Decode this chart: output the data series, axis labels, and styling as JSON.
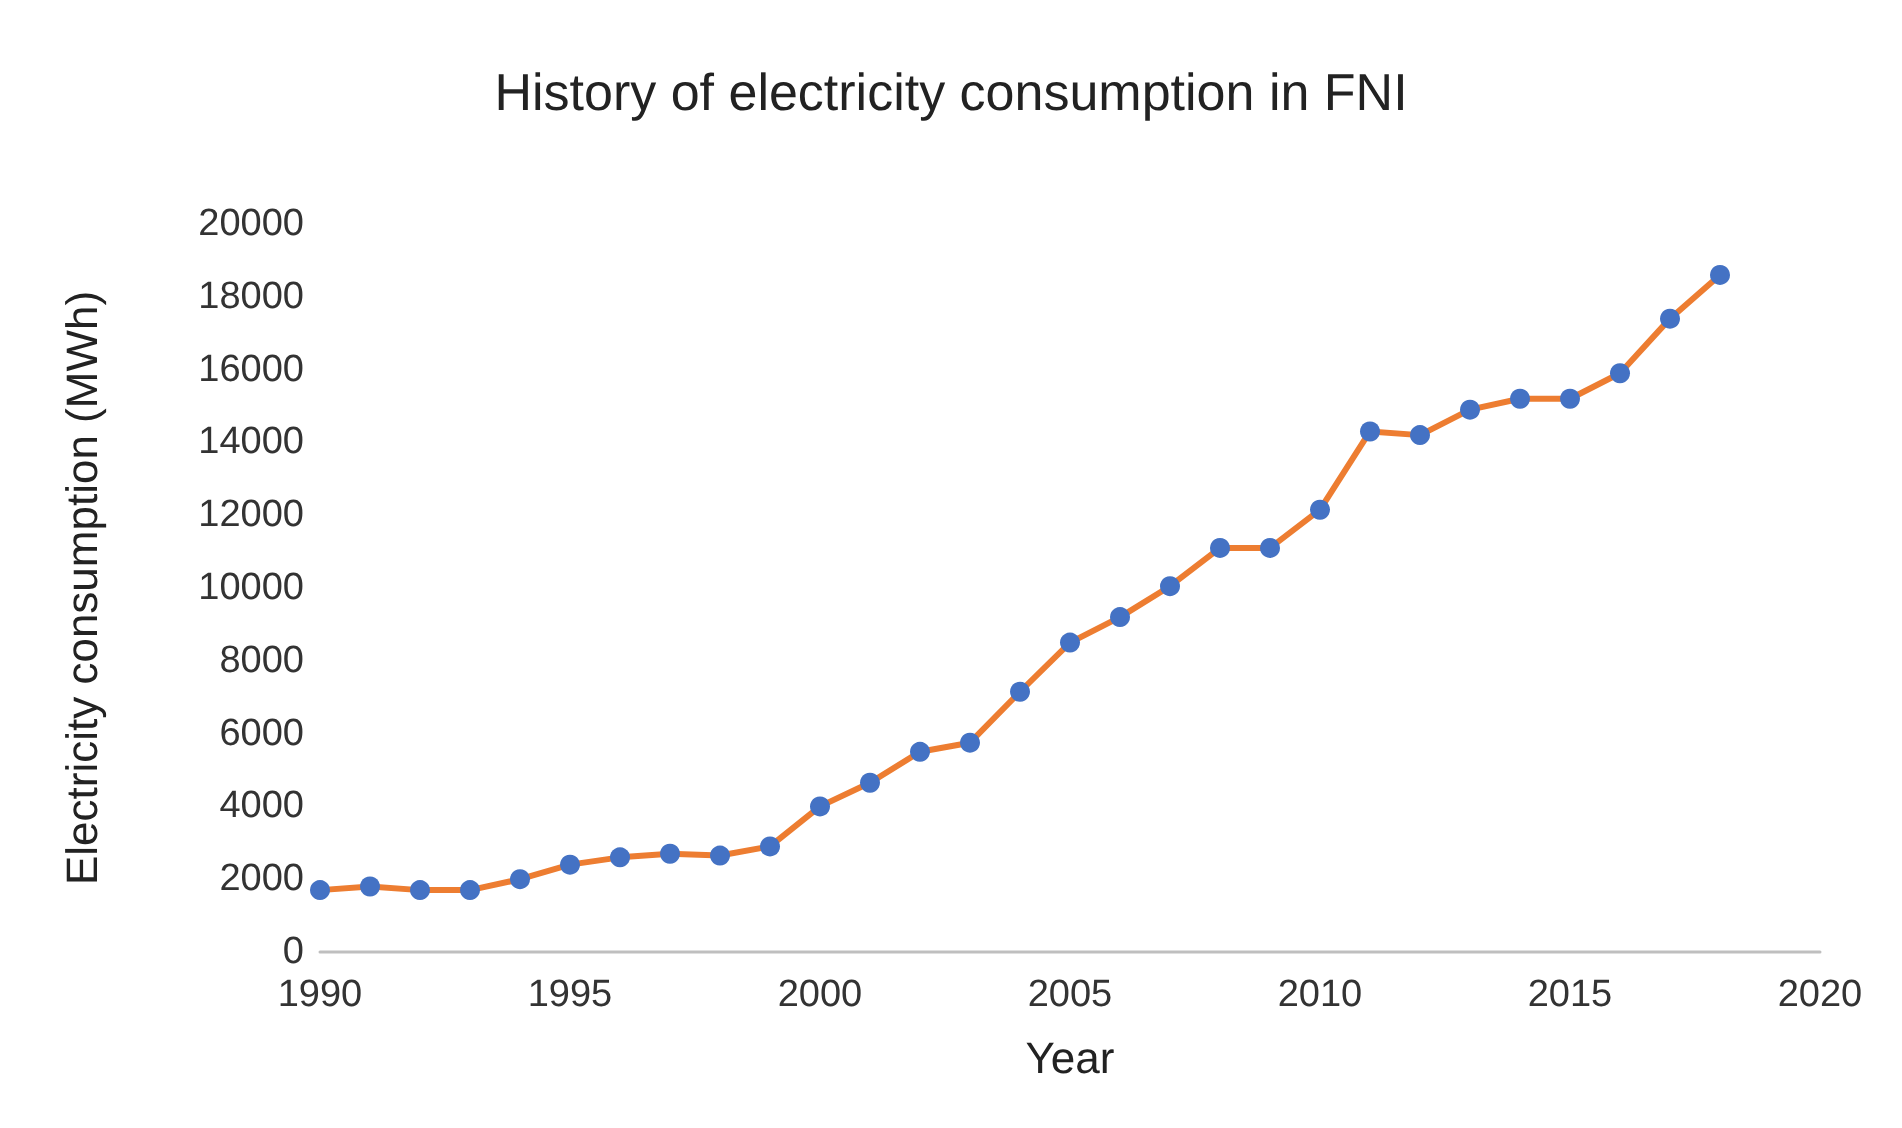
{
  "chart_data": {
    "type": "line",
    "title": "History of electricity consumption in FNI",
    "xlabel": "Year",
    "ylabel": "Electricity consumption (MWh)",
    "x": [
      1990,
      1991,
      1992,
      1993,
      1994,
      1995,
      1996,
      1997,
      1998,
      1999,
      2000,
      2001,
      2002,
      2003,
      2004,
      2005,
      2006,
      2007,
      2008,
      2009,
      2010,
      2011,
      2012,
      2013,
      2014,
      2015,
      2016,
      2017,
      2018
    ],
    "series": [
      {
        "color": "#ed7d31",
        "colors": [
          "#4472c4",
          "#4472c4",
          "#4472c4",
          "#4472c4",
          "#4472c4",
          "#4472c4",
          "#4472c4",
          "#4472c4",
          "#4472c4",
          "#4472c4",
          "#4472c4",
          "#4472c4",
          "#4472c4",
          "#4472c4",
          "#4472c4",
          "#4472c4",
          "#4472c4",
          "#4472c4",
          "#4472c4",
          "#4472c4",
          "#4472c4",
          "#4472c4",
          "#4472c4",
          "#4472c4",
          "#4472c4",
          "#4472c4",
          "#4472c4",
          "#4472c4",
          "#4472c4"
        ],
        "values": [
          1700,
          1800,
          1700,
          1700,
          2000,
          2400,
          2600,
          2700,
          2650,
          2900,
          4000,
          4650,
          5500,
          5750,
          7150,
          8500,
          9200,
          10050,
          11100,
          11100,
          12150,
          14300,
          14200,
          14900,
          15200,
          15200,
          15900,
          17400,
          18600
        ]
      }
    ],
    "xlim": [
      1990,
      2020
    ],
    "xticks": [
      1990,
      1995,
      2000,
      2005,
      2010,
      2015,
      2020
    ],
    "ylim": [
      0,
      20000
    ],
    "yticks": [
      0,
      2000,
      4000,
      6000,
      8000,
      10000,
      12000,
      14000,
      16000,
      18000,
      20000
    ],
    "grid": false,
    "marker": "circle",
    "line_style": "solid"
  }
}
